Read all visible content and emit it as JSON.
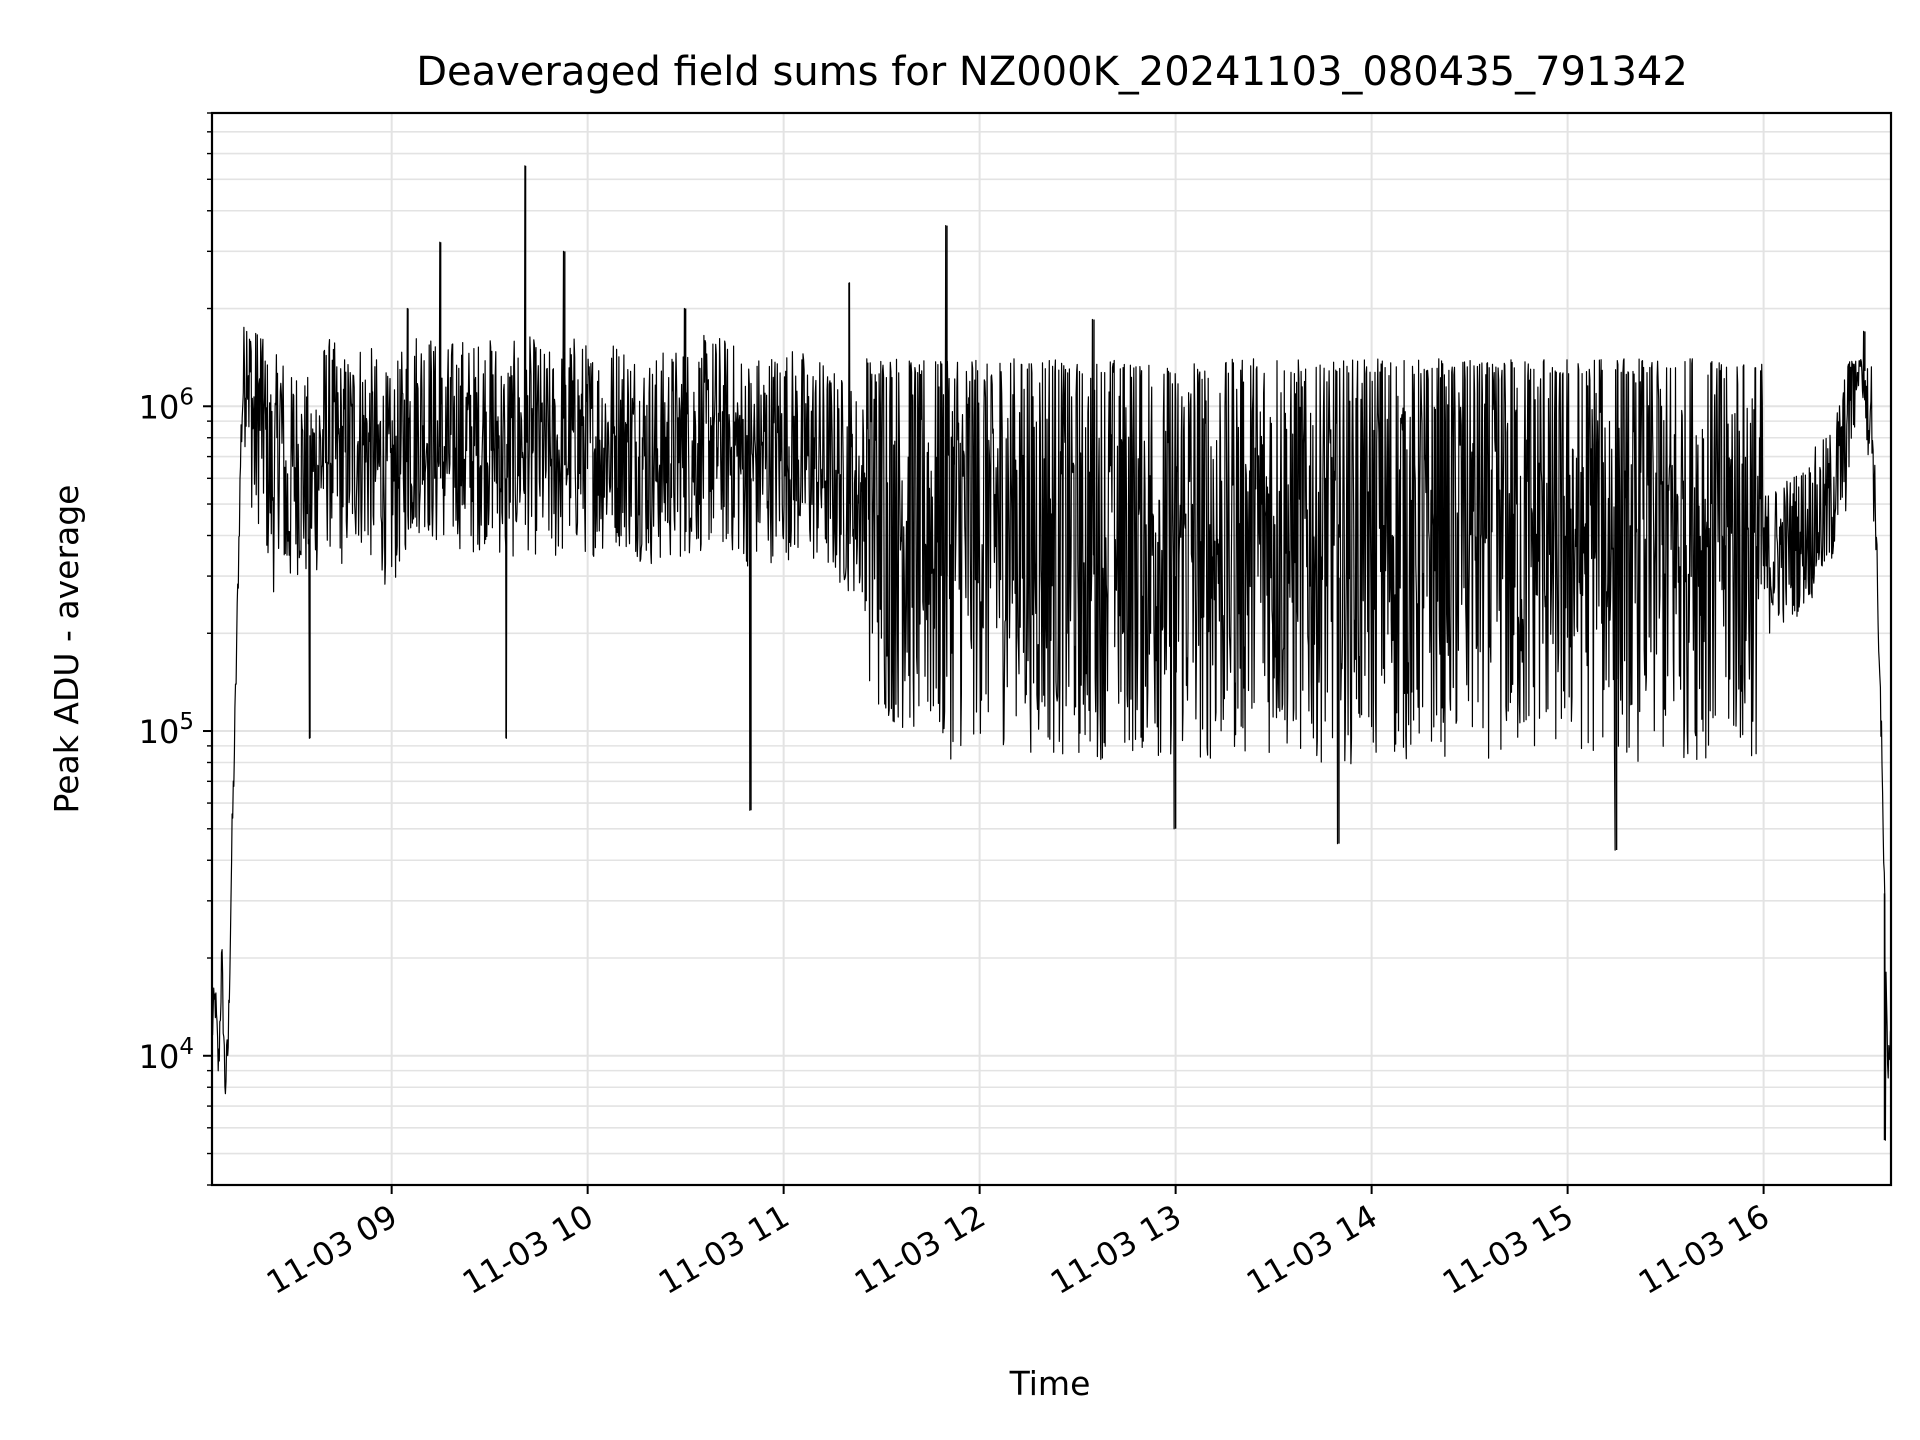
{
  "chart_data": {
    "type": "line",
    "title": "Deaveraged field sums for NZ000K_20241103_080435_791342",
    "xlabel": "Time",
    "ylabel": "Peak ADU - average",
    "yscale": "log",
    "ylim": [
      4000,
      8000000
    ],
    "xlim": [
      "2024-11-03 08:05",
      "2024-11-03 16:39"
    ],
    "grid": true,
    "x_ticks": [
      "11-03 09",
      "11-03 10",
      "11-03 11",
      "11-03 12",
      "11-03 13",
      "11-03 14",
      "11-03 15",
      "11-03 16"
    ],
    "y_ticks": [
      {
        "value": 10000,
        "base": "10",
        "exp": "4"
      },
      {
        "value": 100000,
        "base": "10",
        "exp": "5"
      },
      {
        "value": 1000000,
        "base": "10",
        "exp": "6"
      }
    ],
    "line_color": "#000000",
    "series": [
      {
        "x": [
          "2024-11-03 08:05",
          "2024-11-03 08:06",
          "2024-11-03 08:07",
          "2024-11-03 08:08",
          "2024-11-03 08:09",
          "2024-11-03 08:10",
          "2024-11-03 08:11",
          "2024-11-03 08:12",
          "2024-11-03 08:13",
          "2024-11-03 08:14",
          "2024-11-03 08:15",
          "2024-11-03 08:16",
          "2024-11-03 08:18",
          "2024-11-03 08:20",
          "2024-11-03 08:22",
          "2024-11-03 08:24",
          "2024-11-03 08:26",
          "2024-11-03 08:28",
          "2024-11-03 08:30",
          "2024-11-03 08:35",
          "2024-11-03 08:40",
          "2024-11-03 08:45",
          "2024-11-03 08:50",
          "2024-11-03 08:55",
          "2024-11-03 09:00",
          "2024-11-03 09:05",
          "2024-11-03 09:10",
          "2024-11-03 09:15",
          "2024-11-03 09:20",
          "2024-11-03 09:25",
          "2024-11-03 09:30",
          "2024-11-03 09:35",
          "2024-11-03 09:40",
          "2024-11-03 09:45",
          "2024-11-03 09:50",
          "2024-11-03 09:55",
          "2024-11-03 10:00",
          "2024-11-03 10:10",
          "2024-11-03 10:20",
          "2024-11-03 10:30",
          "2024-11-03 10:40",
          "2024-11-03 10:50",
          "2024-11-03 11:00",
          "2024-11-03 11:10",
          "2024-11-03 11:20",
          "2024-11-03 11:30",
          "2024-11-03 11:40",
          "2024-11-03 11:50",
          "2024-11-03 12:00",
          "2024-11-03 12:15",
          "2024-11-03 12:30",
          "2024-11-03 12:45",
          "2024-11-03 13:00",
          "2024-11-03 13:15",
          "2024-11-03 13:30",
          "2024-11-03 13:45",
          "2024-11-03 14:00",
          "2024-11-03 14:15",
          "2024-11-03 14:30",
          "2024-11-03 14:45",
          "2024-11-03 15:00",
          "2024-11-03 15:15",
          "2024-11-03 15:30",
          "2024-11-03 15:45",
          "2024-11-03 16:00",
          "2024-11-03 16:10",
          "2024-11-03 16:20",
          "2024-11-03 16:25",
          "2024-11-03 16:28",
          "2024-11-03 16:30",
          "2024-11-03 16:32",
          "2024-11-03 16:34",
          "2024-11-03 16:36",
          "2024-11-03 16:38",
          "2024-11-03 16:39"
        ],
        "y": [
          12000,
          15000,
          9000,
          20000,
          8000,
          11000,
          40000,
          100000,
          300000,
          900000,
          1400000,
          1300000,
          700000,
          900000,
          600000,
          500000,
          800000,
          400000,
          600000,
          500000,
          700000,
          600000,
          700000,
          600000,
          500000,
          700000,
          800000,
          600000,
          700000,
          650000,
          750000,
          600000,
          700000,
          650000,
          600000,
          700000,
          650000,
          700000,
          600000,
          650000,
          700000,
          600000,
          650000,
          600000,
          500000,
          400000,
          350000,
          300000,
          350000,
          320000,
          300000,
          310000,
          300000,
          290000,
          310000,
          300000,
          290000,
          300000,
          310000,
          300000,
          320000,
          300000,
          290000,
          310000,
          300000,
          350000,
          450000,
          700000,
          1300000,
          1500000,
          1100000,
          600000,
          100000,
          10000,
          11000
        ]
      }
    ],
    "spikes": [
      {
        "x": "2024-11-03 09:05",
        "y": 2000000
      },
      {
        "x": "2024-11-03 09:15",
        "y": 3200000
      },
      {
        "x": "2024-11-03 09:41",
        "y": 5500000
      },
      {
        "x": "2024-11-03 09:53",
        "y": 3000000
      },
      {
        "x": "2024-11-03 10:30",
        "y": 2000000
      },
      {
        "x": "2024-11-03 11:20",
        "y": 2400000
      },
      {
        "x": "2024-11-03 11:50",
        "y": 3600000
      },
      {
        "x": "2024-11-03 12:35",
        "y": 1850000
      },
      {
        "x": "2024-11-03 16:31",
        "y": 1700000
      }
    ],
    "dips": [
      {
        "x": "2024-11-03 08:35",
        "y": 95000
      },
      {
        "x": "2024-11-03 09:35",
        "y": 95000
      },
      {
        "x": "2024-11-03 10:50",
        "y": 57000
      },
      {
        "x": "2024-11-03 13:00",
        "y": 50000
      },
      {
        "x": "2024-11-03 13:50",
        "y": 45000
      },
      {
        "x": "2024-11-03 15:15",
        "y": 43000
      },
      {
        "x": "2024-11-03 16:37",
        "y": 5500
      }
    ]
  }
}
